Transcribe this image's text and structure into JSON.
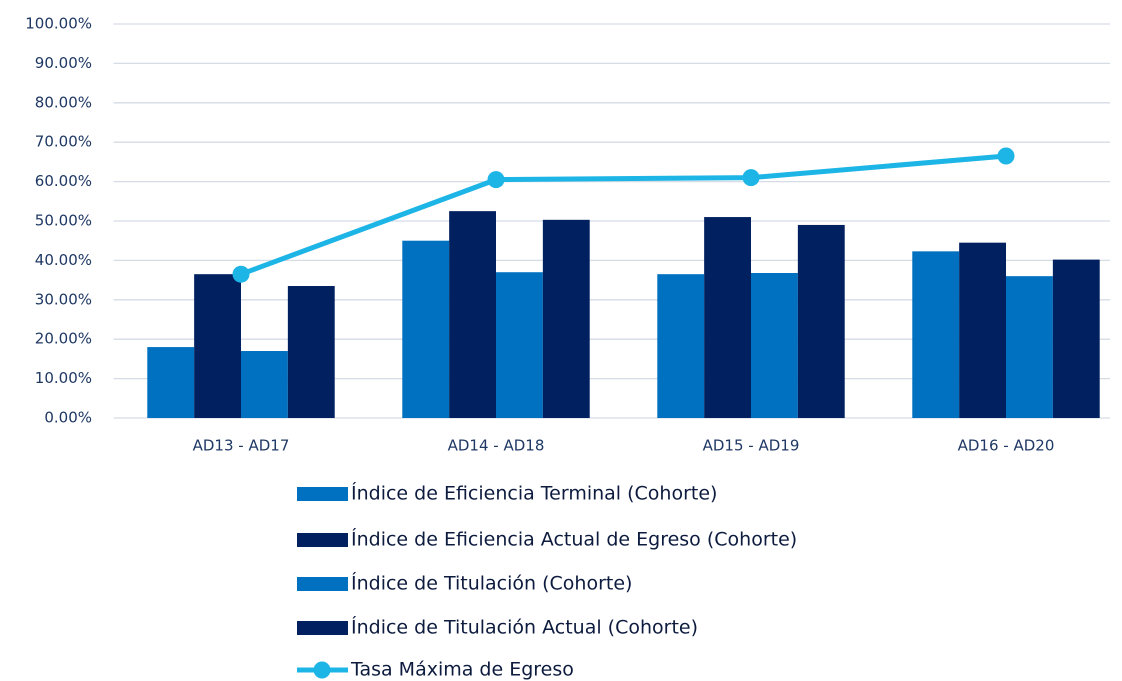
{
  "chart_data": {
    "type": "bar",
    "categories": [
      "AD13 - AD17",
      "AD14 - AD18",
      "AD15 - AD19",
      "AD16 - AD20"
    ],
    "series": [
      {
        "name": "Índice de Eficiencia Terminal (Cohorte)",
        "color": "#0070c0",
        "values": [
          18,
          45,
          36.5,
          42.3
        ]
      },
      {
        "name": "Índice de Eficiencia Actual de Egreso (Cohorte)",
        "color": "#002060",
        "values": [
          36.5,
          52.5,
          51,
          44.5
        ]
      },
      {
        "name": "Índice de Titulación (Cohorte)",
        "color": "#0070c0",
        "values": [
          17,
          37,
          36.8,
          36
        ]
      },
      {
        "name": "Índice de Titulación Actual (Cohorte)",
        "color": "#002060",
        "values": [
          33.5,
          50.3,
          49,
          40.2
        ]
      },
      {
        "name": "Tasa Máxima de Egreso",
        "color": "#1db4e6",
        "type": "line",
        "values": [
          36.5,
          60.5,
          61,
          66.5
        ]
      }
    ],
    "ylim": [
      0,
      100
    ],
    "yticks": [
      {
        "value": 0,
        "label": "0.00%"
      },
      {
        "value": 10,
        "label": "10.00%"
      },
      {
        "value": 20,
        "label": "20.00%"
      },
      {
        "value": 30,
        "label": "30.00%"
      },
      {
        "value": 40,
        "label": "40.00%"
      },
      {
        "value": 50,
        "label": "50.00%"
      },
      {
        "value": 60,
        "label": "60.00%"
      },
      {
        "value": 70,
        "label": "70.00%"
      },
      {
        "value": 80,
        "label": "80.00%"
      },
      {
        "value": 90,
        "label": "90.00%"
      },
      {
        "value": 100,
        "label": "100.00%"
      }
    ],
    "grid": true,
    "legend": "bottom"
  }
}
